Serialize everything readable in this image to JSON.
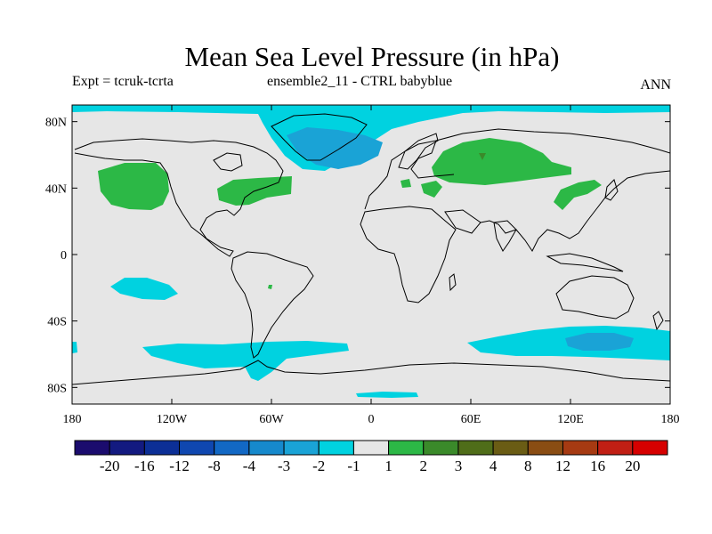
{
  "map": {
    "title": "Mean Sea Level Pressure (in hPa)",
    "subtitle_left": "Expt = tcruk-tcrta",
    "subtitle_center": "ensemble2_11 - CTRL babyblue",
    "subtitle_right": "ANN",
    "projection": "cylindrical-equidistant",
    "lon_range": [
      -180,
      180
    ],
    "lat_range": [
      -90,
      90
    ],
    "x_tick_labels": [
      "180",
      "120W",
      "60W",
      "0",
      "60E",
      "120E",
      "180"
    ],
    "y_tick_labels": [
      "80N",
      "40N",
      "0",
      "40S",
      "80S"
    ],
    "colors": {
      "background": "#e6e6e6",
      "neg_1_to_2": "#00d2e0",
      "neg_2_to_3": "#1aa3d6",
      "pos_1_to_2": "#2cb846",
      "pos_2_to_3": "#3a8a2a",
      "coast": "#000000"
    }
  },
  "colorbar": {
    "labels": [
      "-20",
      "-16",
      "-12",
      "-8",
      "-4",
      "-3",
      "-2",
      "-1",
      "1",
      "2",
      "3",
      "4",
      "8",
      "12",
      "16",
      "20"
    ],
    "colors": [
      "#1b0c6e",
      "#131a80",
      "#0c2f96",
      "#0f47b0",
      "#1268c4",
      "#1689cc",
      "#1aa3d6",
      "#00d2e0",
      "#e6e6e6",
      "#2cb846",
      "#3a8a2a",
      "#4f6d19",
      "#6a5c14",
      "#8a4d13",
      "#a63a12",
      "#c11f14",
      "#d60000"
    ]
  }
}
